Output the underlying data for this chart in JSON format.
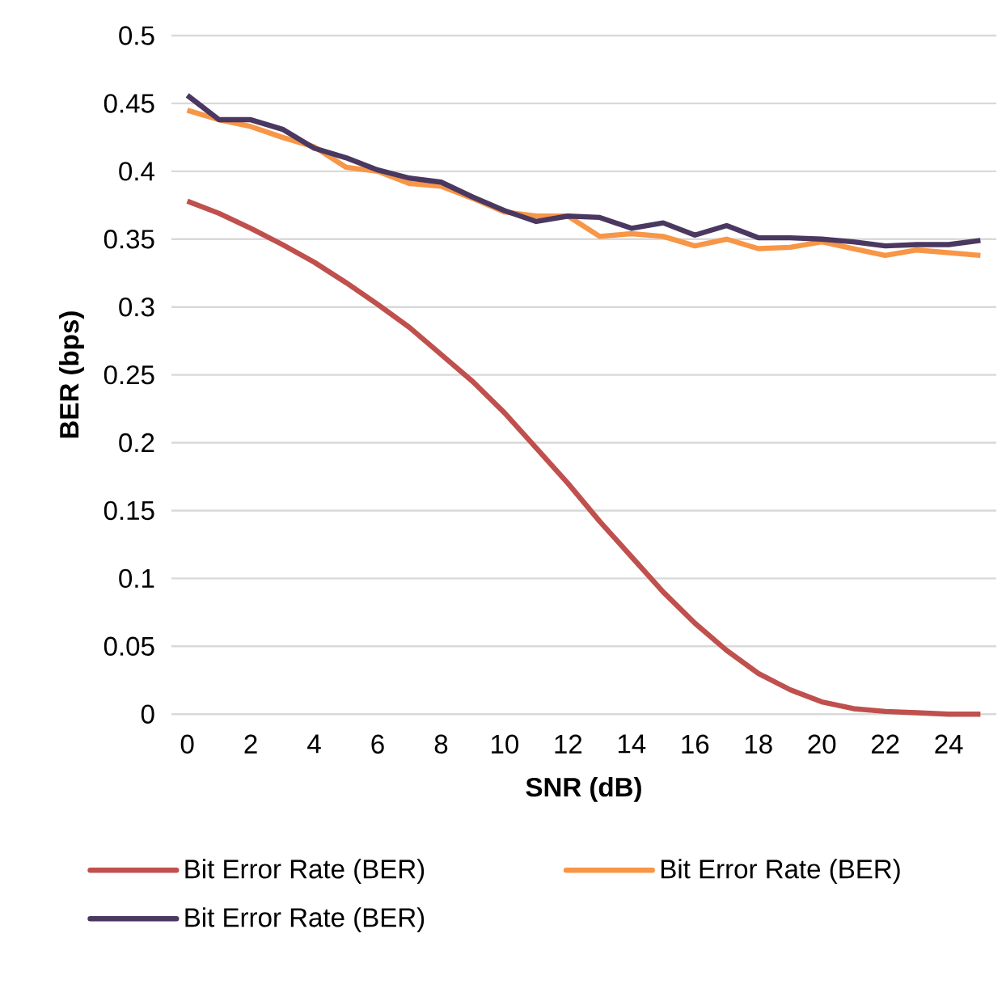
{
  "chart_data": {
    "type": "line",
    "xlabel": "SNR (dB)",
    "ylabel": "BER (bps)",
    "x": [
      0,
      1,
      2,
      3,
      4,
      5,
      6,
      7,
      8,
      9,
      10,
      11,
      12,
      13,
      14,
      15,
      16,
      17,
      18,
      19,
      20,
      21,
      22,
      23,
      24,
      25
    ],
    "xlim": [
      -0.5,
      25.5
    ],
    "xticks": [
      0,
      2,
      4,
      6,
      8,
      10,
      12,
      14,
      16,
      18,
      20,
      22,
      24
    ],
    "ylim": [
      0,
      0.5
    ],
    "yticks": [
      0,
      0.05,
      0.1,
      0.15,
      0.2,
      0.25,
      0.3,
      0.35,
      0.4,
      0.45,
      0.5
    ],
    "grid": "y",
    "legend": "bottom",
    "series": [
      {
        "name": "Bit Error Rate (BER)",
        "color": "#c0504d",
        "values": [
          0.378,
          0.369,
          0.358,
          0.346,
          0.333,
          0.318,
          0.302,
          0.285,
          0.265,
          0.245,
          0.222,
          0.196,
          0.17,
          0.142,
          0.116,
          0.09,
          0.067,
          0.047,
          0.03,
          0.018,
          0.009,
          0.004,
          0.002,
          0.001,
          0,
          0
        ]
      },
      {
        "name": "Bit Error Rate (BER)",
        "color": "#f79646",
        "values": [
          0.445,
          0.438,
          0.433,
          0.425,
          0.418,
          0.403,
          0.4,
          0.391,
          0.389,
          0.38,
          0.37,
          0.367,
          0.367,
          0.352,
          0.354,
          0.352,
          0.345,
          0.35,
          0.343,
          0.344,
          0.348,
          0.343,
          0.338,
          0.342,
          0.34,
          0.338
        ]
      },
      {
        "name": "Bit Error Rate (BER)",
        "color": "#4a3860",
        "values": [
          0.456,
          0.438,
          0.438,
          0.431,
          0.417,
          0.41,
          0.401,
          0.395,
          0.392,
          0.381,
          0.371,
          0.363,
          0.367,
          0.366,
          0.358,
          0.362,
          0.353,
          0.36,
          0.351,
          0.351,
          0.35,
          0.348,
          0.345,
          0.346,
          0.346,
          0.349
        ]
      }
    ]
  }
}
